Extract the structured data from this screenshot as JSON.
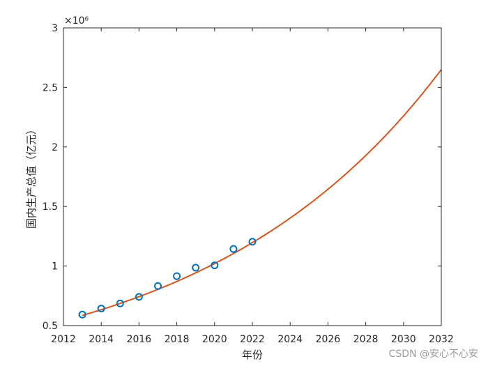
{
  "chart_data": {
    "type": "line",
    "xlabel": "年份",
    "ylabel": "国内生产总值（亿元）",
    "xlim": [
      2012,
      2032
    ],
    "ylim": [
      500000,
      3000000
    ],
    "x_ticks": [
      2012,
      2014,
      2016,
      2018,
      2020,
      2022,
      2024,
      2026,
      2028,
      2030,
      2032
    ],
    "y_ticks": [
      500000,
      1000000,
      1500000,
      2000000,
      2500000,
      3000000
    ],
    "y_tick_labels": [
      "0.5",
      "1",
      "1.5",
      "2",
      "2.5",
      "3"
    ],
    "y_exponent_label": "×10⁶",
    "grid": false,
    "series": [
      {
        "kind": "scatter",
        "marker": "circle",
        "color": "#0072BD",
        "x": [
          2013,
          2014,
          2015,
          2016,
          2017,
          2018,
          2019,
          2020,
          2021,
          2022
        ],
        "y": [
          592000,
          643000,
          686000,
          741000,
          832000,
          915000,
          986000,
          1006000,
          1143000,
          1204000
        ]
      },
      {
        "kind": "line",
        "color": "#D95319",
        "x": [
          2013,
          2014,
          2015,
          2016,
          2017,
          2018,
          2019,
          2020,
          2021,
          2022,
          2023,
          2024,
          2025,
          2026,
          2027,
          2028,
          2029,
          2030,
          2031,
          2032
        ],
        "y": [
          585000,
          628000,
          675000,
          726000,
          781000,
          840000,
          904000,
          972000,
          1046000,
          1124000,
          1209000,
          1301000,
          1399000,
          1505000,
          1619000,
          1741000,
          1873000,
          2015000,
          2169000,
          2650000
        ]
      }
    ]
  },
  "watermark": "CSDN @安心不心安",
  "colors": {
    "axis": "#262626",
    "markers": "#0072BD",
    "curve": "#D95319"
  }
}
